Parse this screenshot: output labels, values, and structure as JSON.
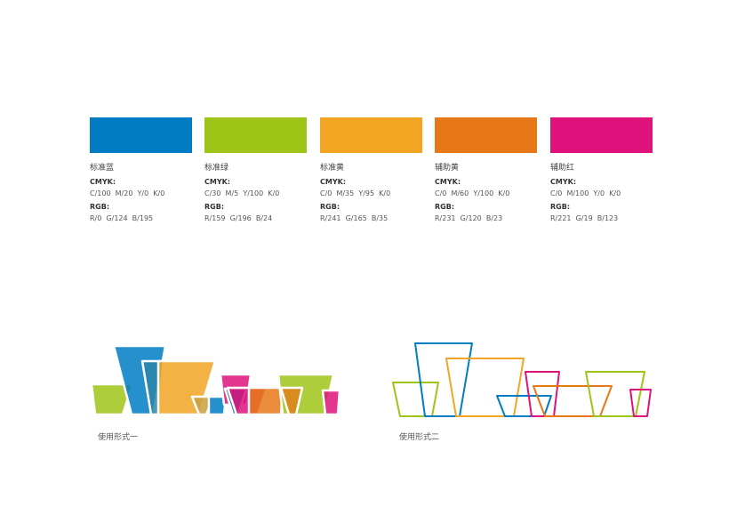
{
  "swatches": [
    {
      "name": "标准蓝",
      "cmyk_label": "CMYK:",
      "cmyk": "C/100  M/20  Y/0  K/0",
      "rgb_label": "RGB:",
      "rgb": "R/0  G/124  B/195",
      "color": "#007CC3"
    },
    {
      "name": "标准绿",
      "cmyk_label": "CMYK:",
      "cmyk": "C/30  M/5  Y/100  K/0",
      "rgb_label": "RGB:",
      "rgb": "R/159  G/196  B/24",
      "color": "#9FC418"
    },
    {
      "name": "标准黄",
      "cmyk_label": "CMYK:",
      "cmyk": "C/0  M/35  Y/95  K/0",
      "rgb_label": "RGB:",
      "rgb": "R/241  G/165  B/35",
      "color": "#F1A523"
    },
    {
      "name": "辅助黄",
      "cmyk_label": "CMYK:",
      "cmyk": "C/0  M/60  Y/100  K/0",
      "rgb_label": "RGB:",
      "rgb": "R/231  G/120  B/23",
      "color": "#E77817"
    },
    {
      "name": "辅助红",
      "cmyk_label": "CMYK:",
      "cmyk": "C/0  M/100  Y/0  K/0",
      "rgb_label": "RGB:",
      "rgb": "R/221  G/19  B/123",
      "color": "#DD137B"
    }
  ],
  "usage": [
    {
      "caption": "使用形式一"
    },
    {
      "caption": "使用形式二"
    }
  ]
}
